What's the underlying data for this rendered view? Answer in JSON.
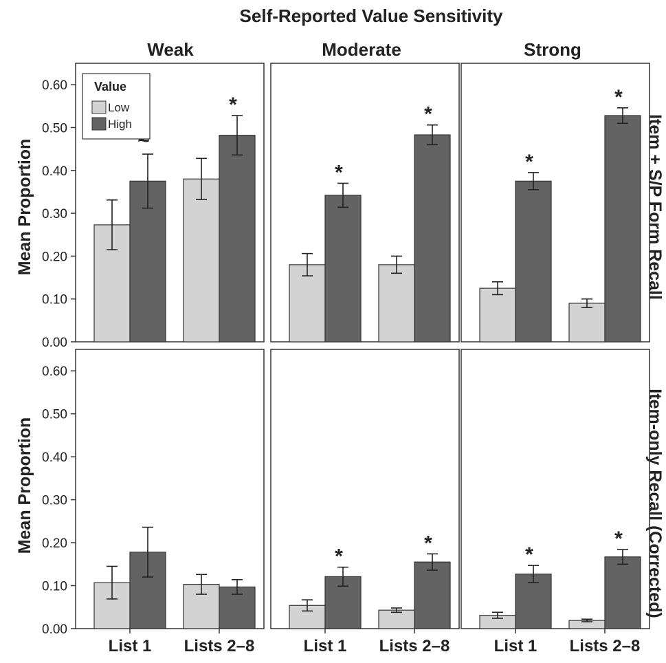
{
  "chart_data": {
    "type": "bar",
    "title": "Self-Reported Value Sensitivity",
    "columns": [
      "Weak",
      "Moderate",
      "Strong"
    ],
    "rows": [
      "Item + S/P Form Recall",
      "Item-only Recall (Corrected)"
    ],
    "ylabel": "Mean Proportion",
    "categories": [
      "List 1",
      "Lists 2-8"
    ],
    "ylim": [
      0,
      0.65
    ],
    "yticks": [
      "0.00",
      "0.10",
      "0.20",
      "0.30",
      "0.40",
      "0.50",
      "0.60"
    ],
    "legend": {
      "title": "Value",
      "position": "top-left",
      "entries": [
        {
          "name": "Low",
          "color": "#d3d3d3"
        },
        {
          "name": "High",
          "color": "#636363"
        }
      ]
    },
    "grid": false,
    "panels": [
      {
        "row": 0,
        "col": 0,
        "series": [
          {
            "name": "Low",
            "values": [
              0.273,
              0.38
            ],
            "errors": [
              0.058,
              0.048
            ]
          },
          {
            "name": "High",
            "values": [
              0.375,
              0.482
            ],
            "errors": [
              0.063,
              0.046
            ]
          }
        ],
        "annotations": [
          "~",
          "*"
        ]
      },
      {
        "row": 0,
        "col": 1,
        "series": [
          {
            "name": "Low",
            "values": [
              0.18,
              0.18
            ],
            "errors": [
              0.026,
              0.02
            ]
          },
          {
            "name": "High",
            "values": [
              0.342,
              0.483
            ],
            "errors": [
              0.028,
              0.023
            ]
          }
        ],
        "annotations": [
          "*",
          "*"
        ]
      },
      {
        "row": 0,
        "col": 2,
        "series": [
          {
            "name": "Low",
            "values": [
              0.125,
              0.09
            ],
            "errors": [
              0.015,
              0.01
            ]
          },
          {
            "name": "High",
            "values": [
              0.375,
              0.528
            ],
            "errors": [
              0.02,
              0.018
            ]
          }
        ],
        "annotations": [
          "*",
          "*"
        ]
      },
      {
        "row": 1,
        "col": 0,
        "series": [
          {
            "name": "Low",
            "values": [
              0.107,
              0.103
            ],
            "errors": [
              0.038,
              0.023
            ]
          },
          {
            "name": "High",
            "values": [
              0.178,
              0.097
            ],
            "errors": [
              0.058,
              0.017
            ]
          }
        ],
        "annotations": [
          "",
          ""
        ]
      },
      {
        "row": 1,
        "col": 1,
        "series": [
          {
            "name": "Low",
            "values": [
              0.054,
              0.043
            ],
            "errors": [
              0.013,
              0.005
            ]
          },
          {
            "name": "High",
            "values": [
              0.121,
              0.155
            ],
            "errors": [
              0.022,
              0.019
            ]
          }
        ],
        "annotations": [
          "*",
          "*"
        ]
      },
      {
        "row": 1,
        "col": 2,
        "series": [
          {
            "name": "Low",
            "values": [
              0.031,
              0.019
            ],
            "errors": [
              0.007,
              0.003
            ]
          },
          {
            "name": "High",
            "values": [
              0.127,
              0.167
            ],
            "errors": [
              0.02,
              0.017
            ]
          }
        ],
        "annotations": [
          "*",
          "*"
        ]
      }
    ]
  }
}
